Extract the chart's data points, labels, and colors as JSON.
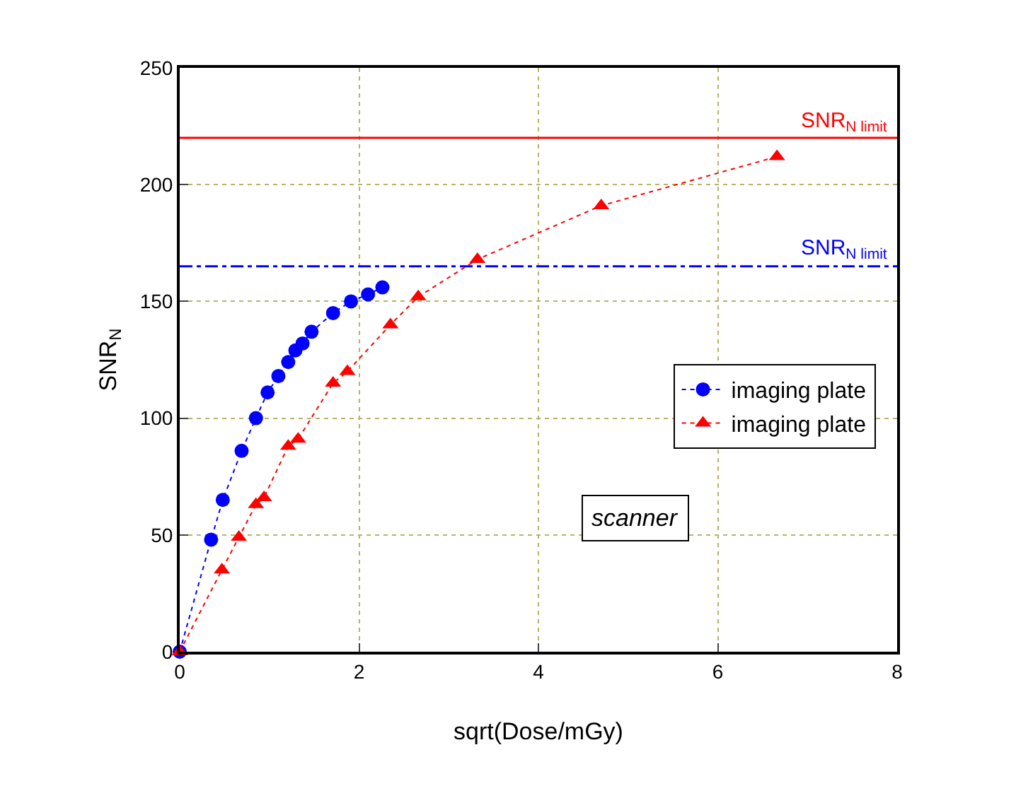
{
  "chart_data": {
    "type": "line",
    "xlabel": "sqrt(Dose/mGy)",
    "ylabel": "SNR$_{N}$",
    "series": [
      {
        "name": "imaging plate",
        "color": "#0000ff",
        "marker": "circle",
        "line_style": "dotted",
        "x": [
          0,
          0.35,
          0.48,
          0.69,
          0.85,
          0.98,
          1.1,
          1.21,
          1.29,
          1.37,
          1.47,
          1.71,
          1.91,
          2.1,
          2.26
        ],
        "values": [
          0,
          48,
          65,
          86,
          100,
          111,
          118,
          124,
          129,
          132,
          137,
          145,
          150,
          153,
          156
        ]
      },
      {
        "name": "imaging plate",
        "color": "#ff0000",
        "marker": "triangle",
        "line_style": "dotted",
        "x": [
          0,
          0.47,
          0.66,
          0.85,
          0.94,
          1.21,
          1.32,
          1.71,
          1.87,
          2.35,
          2.66,
          3.32,
          4.7,
          6.66
        ],
        "values": [
          0,
          35,
          49,
          63,
          66,
          88,
          91,
          115,
          120,
          140,
          152,
          168,
          191,
          212
        ]
      }
    ],
    "ref_lines": [
      {
        "axis": "y",
        "value": 220,
        "label": "SNR$_{N limit}$",
        "color": "#ff0000",
        "line_style": "solid"
      },
      {
        "axis": "y",
        "value": 165,
        "label": "SNR$_{N limit}$",
        "color": "#0000ff",
        "line_style": "dashdot"
      }
    ],
    "annotations": [
      "scanner"
    ],
    "xlim": [
      0,
      8
    ],
    "xticks": [
      0,
      2,
      4,
      6,
      8
    ],
    "ylim": [
      0,
      250
    ],
    "yticks": [
      0,
      50,
      100,
      150,
      200,
      250
    ],
    "grid": true,
    "legend": "right"
  }
}
